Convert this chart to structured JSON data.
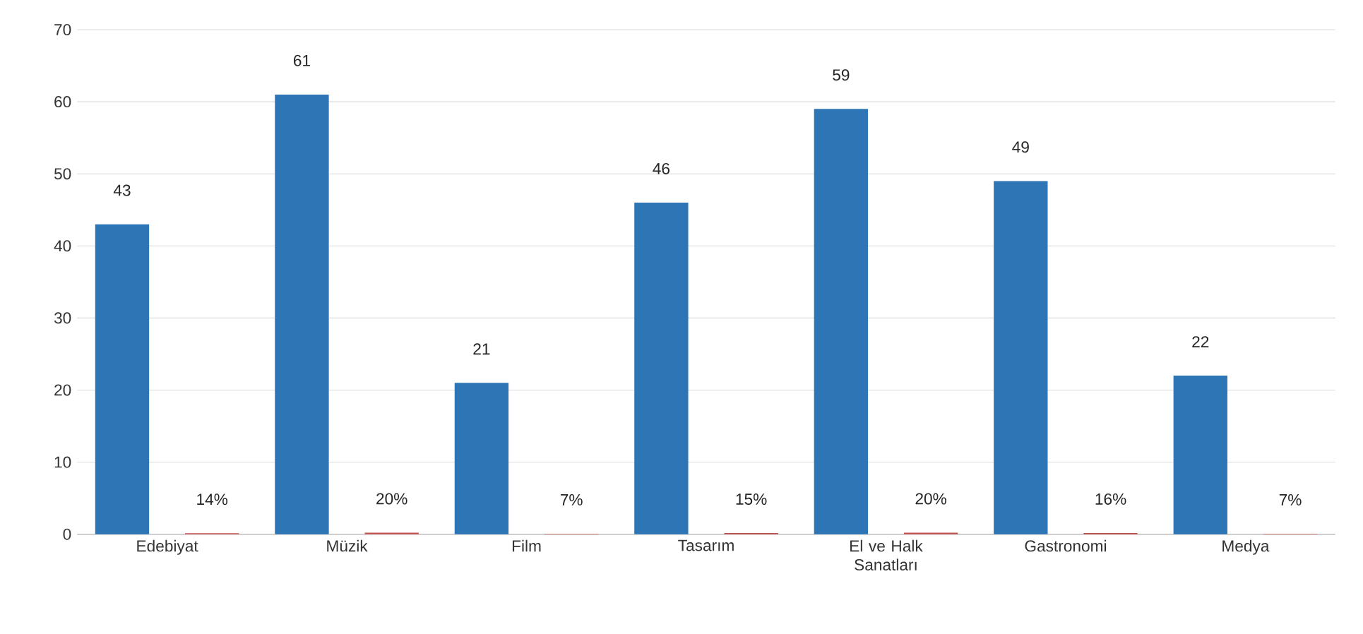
{
  "chart_data": {
    "type": "bar",
    "categories": [
      "Edebiyat",
      "Müzik",
      "Film",
      "Tasarım",
      "El ve Halk Sanatları",
      "Gastronomi",
      "Medya"
    ],
    "series": [
      {
        "color": "#2e75b6",
        "values": [
          43,
          61,
          21,
          46,
          59,
          49,
          22
        ],
        "value_labels": [
          "43",
          "61",
          "21",
          "46",
          "59",
          "49",
          "22"
        ]
      },
      {
        "color": "#c0504d",
        "values": [
          0.14,
          0.2,
          0.07,
          0.15,
          0.2,
          0.16,
          0.07
        ],
        "value_labels": [
          "14%",
          "20%",
          "7%",
          "15%",
          "20%",
          "16%",
          "7%"
        ]
      }
    ],
    "ylim": [
      0,
      70
    ],
    "yticks": [
      0,
      10,
      20,
      30,
      40,
      50,
      60,
      70
    ],
    "grid": "y"
  }
}
